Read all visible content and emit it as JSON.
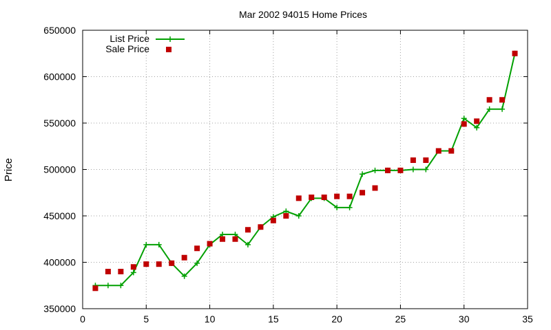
{
  "chart_data": {
    "type": "line",
    "title": "Mar 2002 94015 Home Prices",
    "xlabel": "",
    "ylabel": "Price",
    "xlim": [
      0,
      35
    ],
    "ylim": [
      350000,
      650000
    ],
    "x_ticks": [
      0,
      5,
      10,
      15,
      20,
      25,
      30,
      35
    ],
    "y_ticks": [
      350000,
      400000,
      450000,
      500000,
      550000,
      600000,
      650000
    ],
    "grid": true,
    "legend_position": "top-left",
    "x": [
      1,
      2,
      3,
      4,
      5,
      6,
      7,
      8,
      9,
      10,
      11,
      12,
      13,
      14,
      15,
      16,
      17,
      18,
      19,
      20,
      21,
      22,
      23,
      24,
      25,
      26,
      27,
      28,
      29,
      30,
      31,
      32,
      33,
      34
    ],
    "series": [
      {
        "name": "List Price",
        "style": "linespoints",
        "color": "#00a000",
        "marker": "plus",
        "values": [
          375000,
          375000,
          375000,
          389000,
          419000,
          419000,
          399000,
          385000,
          399000,
          419000,
          430000,
          430000,
          419000,
          438000,
          449000,
          455000,
          450000,
          469000,
          469000,
          459000,
          459000,
          495000,
          499000,
          499000,
          499000,
          500000,
          500000,
          520000,
          520000,
          555000,
          545000,
          565000,
          565000,
          625000
        ]
      },
      {
        "name": "Sale Price",
        "style": "points",
        "color": "#c00000",
        "marker": "square",
        "values": [
          372000,
          390000,
          390000,
          395000,
          398000,
          398000,
          399000,
          405000,
          415000,
          420000,
          425000,
          425000,
          435000,
          438000,
          445000,
          450000,
          469000,
          470000,
          470000,
          471000,
          471000,
          475000,
          480000,
          499000,
          499000,
          510000,
          510000,
          520000,
          520000,
          549000,
          552000,
          575000,
          575000,
          625000
        ]
      }
    ]
  }
}
